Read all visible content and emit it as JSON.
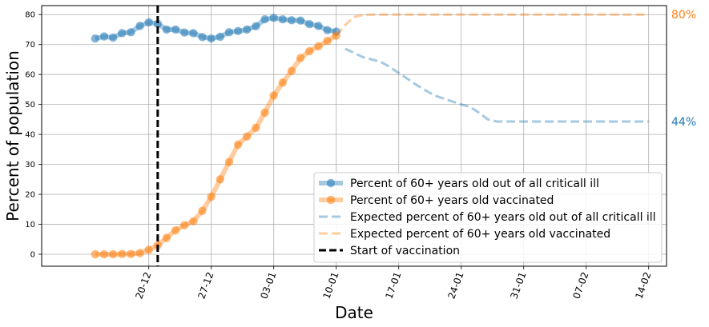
{
  "chart_data": {
    "type": "line",
    "xlabel": "Date",
    "ylabel": "Percent of population",
    "ylim": [
      -4,
      83
    ],
    "xlim_days": [
      -6,
      64
    ],
    "yticks": [
      0,
      10,
      20,
      30,
      40,
      50,
      60,
      70,
      80
    ],
    "xticks": [
      {
        "day": 6,
        "label": "20-12"
      },
      {
        "day": 13,
        "label": "27-12"
      },
      {
        "day": 20,
        "label": "03-01"
      },
      {
        "day": 27,
        "label": "10-01"
      },
      {
        "day": 34,
        "label": "17-01"
      },
      {
        "day": 41,
        "label": "24-01"
      },
      {
        "day": 48,
        "label": "31-01"
      },
      {
        "day": 55,
        "label": "07-02"
      },
      {
        "day": 62,
        "label": "14-02"
      }
    ],
    "grid": true,
    "legend_position": "lower-right",
    "series": [
      {
        "name": "Percent of 60+ years old out of all criticall ill",
        "style": "solid-markers",
        "color": "#1f77b4",
        "x": [
          0,
          1,
          2,
          3,
          4,
          5,
          6,
          7,
          8,
          9,
          10,
          11,
          12,
          13,
          14,
          15,
          16,
          17,
          18,
          19,
          20,
          21,
          22,
          23,
          24,
          25,
          26,
          27
        ],
        "y": [
          72,
          72.7,
          72.3,
          73.8,
          74.1,
          76.2,
          77.4,
          76.9,
          75,
          75,
          74,
          73.8,
          72.5,
          72,
          72.6,
          74.1,
          74.5,
          75,
          76.1,
          78.4,
          78.9,
          78.4,
          78.1,
          78,
          76.8,
          76.2,
          74.8,
          74.3
        ]
      },
      {
        "name": "Percent of 60+ years old vaccinated",
        "style": "solid-markers",
        "color": "#ff7f0e",
        "x": [
          0,
          1,
          2,
          3,
          4,
          5,
          6,
          7,
          8,
          9,
          10,
          11,
          12,
          13,
          14,
          15,
          16,
          17,
          18,
          19,
          20,
          21,
          22,
          23,
          24,
          25,
          26,
          27
        ],
        "y": [
          0,
          0,
          0,
          0.1,
          0.1,
          0.4,
          1.5,
          3,
          5.5,
          8,
          9.7,
          11,
          14.5,
          19.2,
          25,
          30.8,
          36.6,
          39.3,
          42.2,
          47.3,
          53,
          57.3,
          61.2,
          65.5,
          67.8,
          69.4,
          71.2,
          73
        ]
      },
      {
        "name": "Expected percent of 60+ years old out of all criticall ill",
        "style": "dashed",
        "color": "#1f77b4",
        "x": [
          28,
          29,
          30,
          31,
          32,
          33,
          34,
          35,
          36,
          37,
          38,
          39,
          40,
          41,
          42,
          43,
          44,
          45,
          46,
          47,
          48,
          49,
          50,
          51,
          52,
          53,
          54,
          55,
          56,
          57,
          58,
          59,
          60,
          61,
          62
        ],
        "y": [
          68.6,
          67.2,
          65.8,
          65,
          64.2,
          62.5,
          60.5,
          58.5,
          56.5,
          54.7,
          53,
          52,
          51,
          50,
          49.2,
          47.2,
          45,
          44.3,
          44.3,
          44.3,
          44.3,
          44.3,
          44.3,
          44.3,
          44.3,
          44.3,
          44.3,
          44.3,
          44.3,
          44.3,
          44.3,
          44.3,
          44.3,
          44.3,
          44.3
        ],
        "end_label": "44%"
      },
      {
        "name": "Expected percent of 60+ years old vaccinated",
        "style": "dashed",
        "color": "#ff7f0e",
        "x": [
          27,
          28,
          29,
          30,
          31,
          32,
          33,
          34,
          35,
          36,
          37,
          38,
          39,
          40,
          41,
          42,
          43,
          44,
          45,
          46,
          47,
          48,
          49,
          50,
          51,
          52,
          53,
          54,
          55,
          56,
          57,
          58,
          59,
          60,
          61,
          62
        ],
        "y": [
          73,
          76.5,
          79.2,
          79.9,
          80,
          80,
          80,
          80,
          80,
          80,
          80,
          80,
          80,
          80,
          80,
          80,
          80,
          80,
          80,
          80,
          80,
          80,
          80,
          80,
          80,
          80,
          80,
          80,
          80,
          80,
          80,
          80,
          80,
          80,
          80,
          80
        ],
        "end_label": "80%"
      }
    ],
    "vline": {
      "day": 7,
      "name": "Start of vaccination",
      "color": "#000000"
    }
  }
}
